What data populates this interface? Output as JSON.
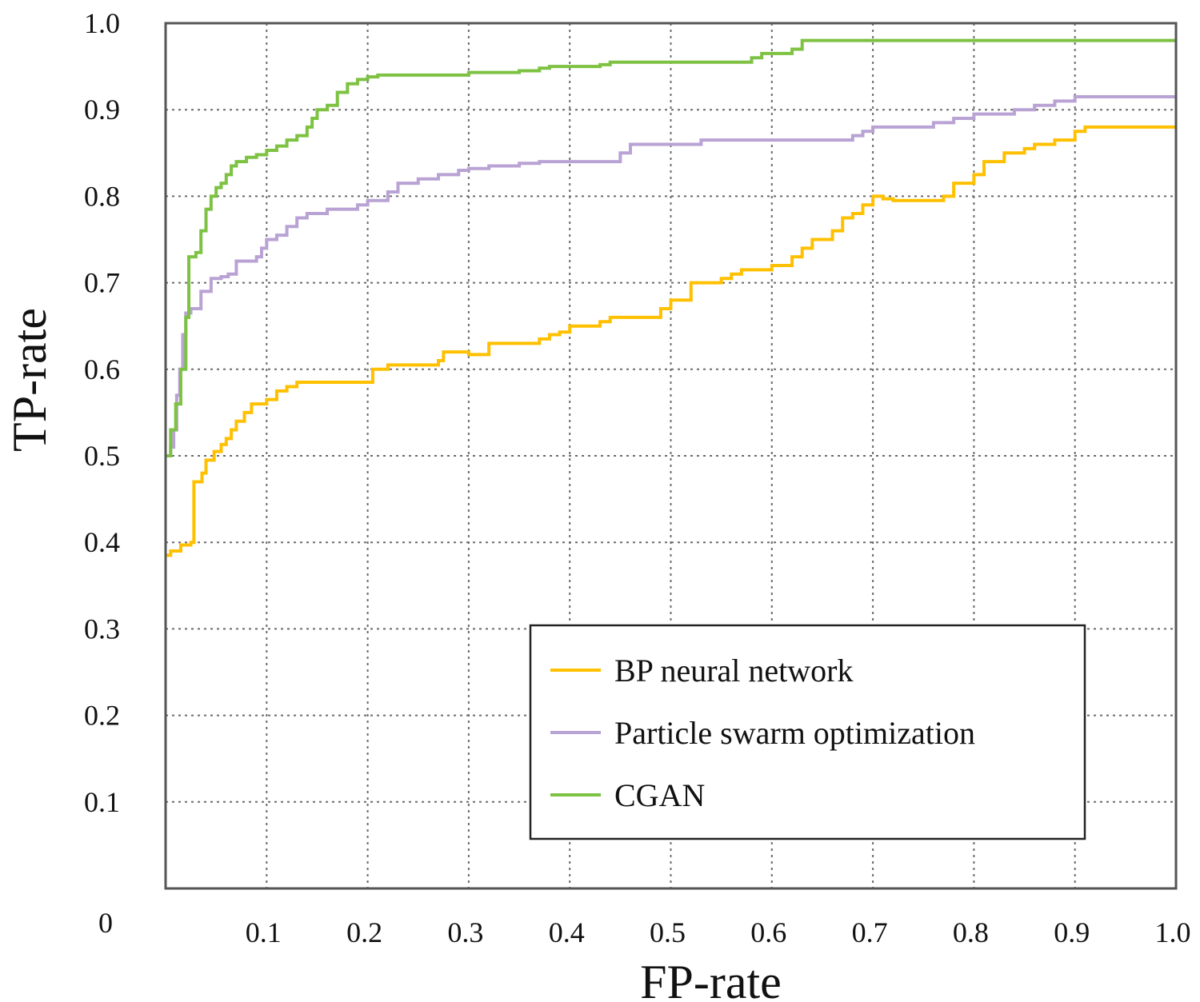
{
  "chart_data": {
    "type": "line",
    "title": "",
    "xlabel": "FP-rate",
    "ylabel": "TP-rate",
    "xlim": [
      0,
      1.0
    ],
    "ylim": [
      0,
      1.0
    ],
    "grid": true,
    "legend_position": "bottom-right",
    "x_origin_label": "0",
    "x_ticks": [
      0.1,
      0.2,
      0.3,
      0.4,
      0.5,
      0.6,
      0.7,
      0.8,
      0.9,
      1.0
    ],
    "x_tick_labels": [
      "0.1",
      "0.2",
      "0.3",
      "0.4",
      "0.5",
      "0.6",
      "0.7",
      "0.8",
      "0.9",
      "1.0"
    ],
    "y_ticks": [
      0.1,
      0.2,
      0.3,
      0.4,
      0.5,
      0.6,
      0.7,
      0.8,
      0.9,
      1.0
    ],
    "y_tick_labels": [
      "0.1",
      "0.2",
      "0.3",
      "0.4",
      "0.5",
      "0.6",
      "0.7",
      "0.8",
      "0.9",
      "1.0"
    ],
    "series": [
      {
        "name": "BP neural network",
        "color": "#FFC000",
        "x": [
          0,
          0.005,
          0.015,
          0.025,
          0.028,
          0.036,
          0.04,
          0.048,
          0.055,
          0.06,
          0.065,
          0.07,
          0.078,
          0.085,
          0.1,
          0.11,
          0.12,
          0.13,
          0.2,
          0.205,
          0.22,
          0.27,
          0.275,
          0.29,
          0.3,
          0.32,
          0.37,
          0.38,
          0.39,
          0.4,
          0.43,
          0.44,
          0.48,
          0.49,
          0.5,
          0.52,
          0.54,
          0.55,
          0.56,
          0.57,
          0.6,
          0.62,
          0.63,
          0.64,
          0.66,
          0.67,
          0.68,
          0.69,
          0.7,
          0.71,
          0.72,
          0.77,
          0.78,
          0.8,
          0.81,
          0.83,
          0.85,
          0.86,
          0.88,
          0.9,
          0.91,
          1.0
        ],
        "y": [
          0.385,
          0.39,
          0.397,
          0.4,
          0.47,
          0.48,
          0.495,
          0.505,
          0.513,
          0.52,
          0.53,
          0.54,
          0.55,
          0.56,
          0.565,
          0.575,
          0.58,
          0.585,
          0.585,
          0.6,
          0.605,
          0.61,
          0.62,
          0.62,
          0.617,
          0.63,
          0.635,
          0.64,
          0.643,
          0.65,
          0.655,
          0.66,
          0.66,
          0.67,
          0.68,
          0.7,
          0.7,
          0.705,
          0.71,
          0.715,
          0.72,
          0.73,
          0.74,
          0.75,
          0.76,
          0.775,
          0.78,
          0.79,
          0.8,
          0.797,
          0.795,
          0.8,
          0.815,
          0.825,
          0.84,
          0.85,
          0.855,
          0.86,
          0.865,
          0.875,
          0.88,
          0.88
        ]
      },
      {
        "name": "Particle swarm optimization",
        "color": "#B9A2D4",
        "x": [
          0,
          0.005,
          0.008,
          0.011,
          0.014,
          0.017,
          0.02,
          0.025,
          0.035,
          0.045,
          0.055,
          0.062,
          0.07,
          0.09,
          0.095,
          0.1,
          0.11,
          0.12,
          0.13,
          0.14,
          0.16,
          0.19,
          0.2,
          0.22,
          0.23,
          0.25,
          0.27,
          0.29,
          0.3,
          0.32,
          0.35,
          0.37,
          0.38,
          0.45,
          0.46,
          0.5,
          0.53,
          0.56,
          0.6,
          0.64,
          0.68,
          0.69,
          0.7,
          0.74,
          0.76,
          0.78,
          0.8,
          0.84,
          0.86,
          0.88,
          0.9,
          1.0
        ],
        "y": [
          0.5,
          0.51,
          0.53,
          0.57,
          0.6,
          0.64,
          0.665,
          0.67,
          0.69,
          0.705,
          0.707,
          0.71,
          0.725,
          0.73,
          0.74,
          0.75,
          0.755,
          0.765,
          0.775,
          0.78,
          0.785,
          0.79,
          0.795,
          0.805,
          0.815,
          0.82,
          0.825,
          0.83,
          0.832,
          0.835,
          0.838,
          0.84,
          0.84,
          0.85,
          0.86,
          0.86,
          0.865,
          0.865,
          0.865,
          0.865,
          0.87,
          0.875,
          0.88,
          0.88,
          0.885,
          0.89,
          0.895,
          0.9,
          0.905,
          0.91,
          0.915,
          0.915
        ]
      },
      {
        "name": "CGAN",
        "color": "#7DC242",
        "x": [
          0,
          0.005,
          0.01,
          0.015,
          0.02,
          0.023,
          0.03,
          0.035,
          0.04,
          0.045,
          0.05,
          0.055,
          0.06,
          0.065,
          0.07,
          0.08,
          0.09,
          0.1,
          0.11,
          0.12,
          0.13,
          0.14,
          0.145,
          0.15,
          0.16,
          0.17,
          0.18,
          0.19,
          0.2,
          0.21,
          0.3,
          0.35,
          0.37,
          0.38,
          0.43,
          0.44,
          0.58,
          0.59,
          0.62,
          0.63,
          1.0
        ],
        "y": [
          0.5,
          0.53,
          0.56,
          0.6,
          0.66,
          0.73,
          0.735,
          0.76,
          0.785,
          0.8,
          0.81,
          0.815,
          0.825,
          0.835,
          0.84,
          0.845,
          0.848,
          0.853,
          0.858,
          0.865,
          0.87,
          0.88,
          0.89,
          0.9,
          0.905,
          0.92,
          0.93,
          0.935,
          0.938,
          0.94,
          0.943,
          0.945,
          0.948,
          0.95,
          0.952,
          0.955,
          0.96,
          0.965,
          0.97,
          0.98,
          0.98
        ]
      }
    ]
  }
}
